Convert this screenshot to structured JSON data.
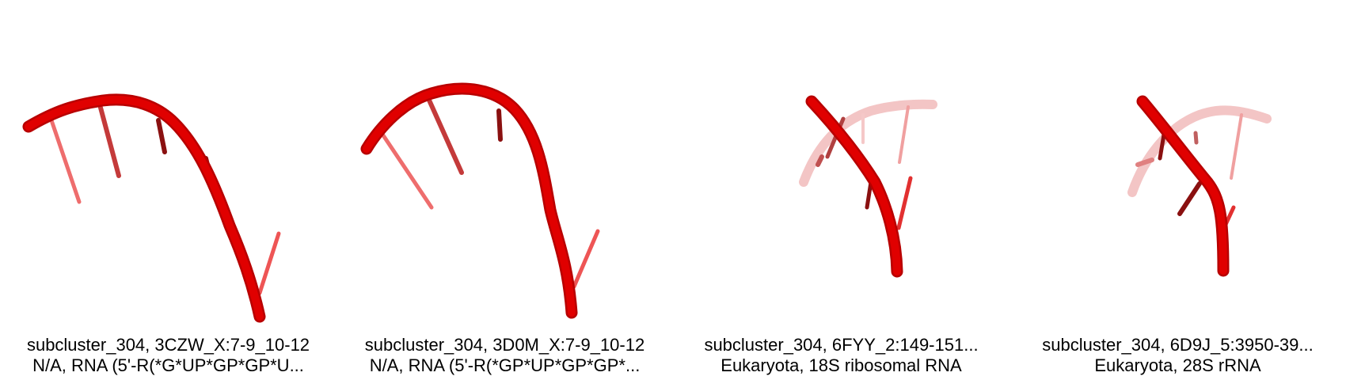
{
  "panels": [
    {
      "title": "subcluster_304, 3CZW_X:7-9_10-12",
      "subtitle": "N/A, RNA (5'-R(*G*UP*GP*GP*U..."
    },
    {
      "title": "subcluster_304, 3D0M_X:7-9_10-12",
      "subtitle": "N/A, RNA (5'-R(*GP*UP*GP*GP*..."
    },
    {
      "title": "subcluster_304, 6FYY_2:149-151...",
      "subtitle": "Eukaryota, 18S ribosomal RNA"
    },
    {
      "title": "subcluster_304, 6D9J_5:3950-39...",
      "subtitle": "Eukaryota, 28S rRNA"
    }
  ],
  "colors": {
    "backbone": "#e00000",
    "backbone_light": "#f3b6b6",
    "base": "#e85a5a",
    "base_dark": "#8a0000"
  }
}
